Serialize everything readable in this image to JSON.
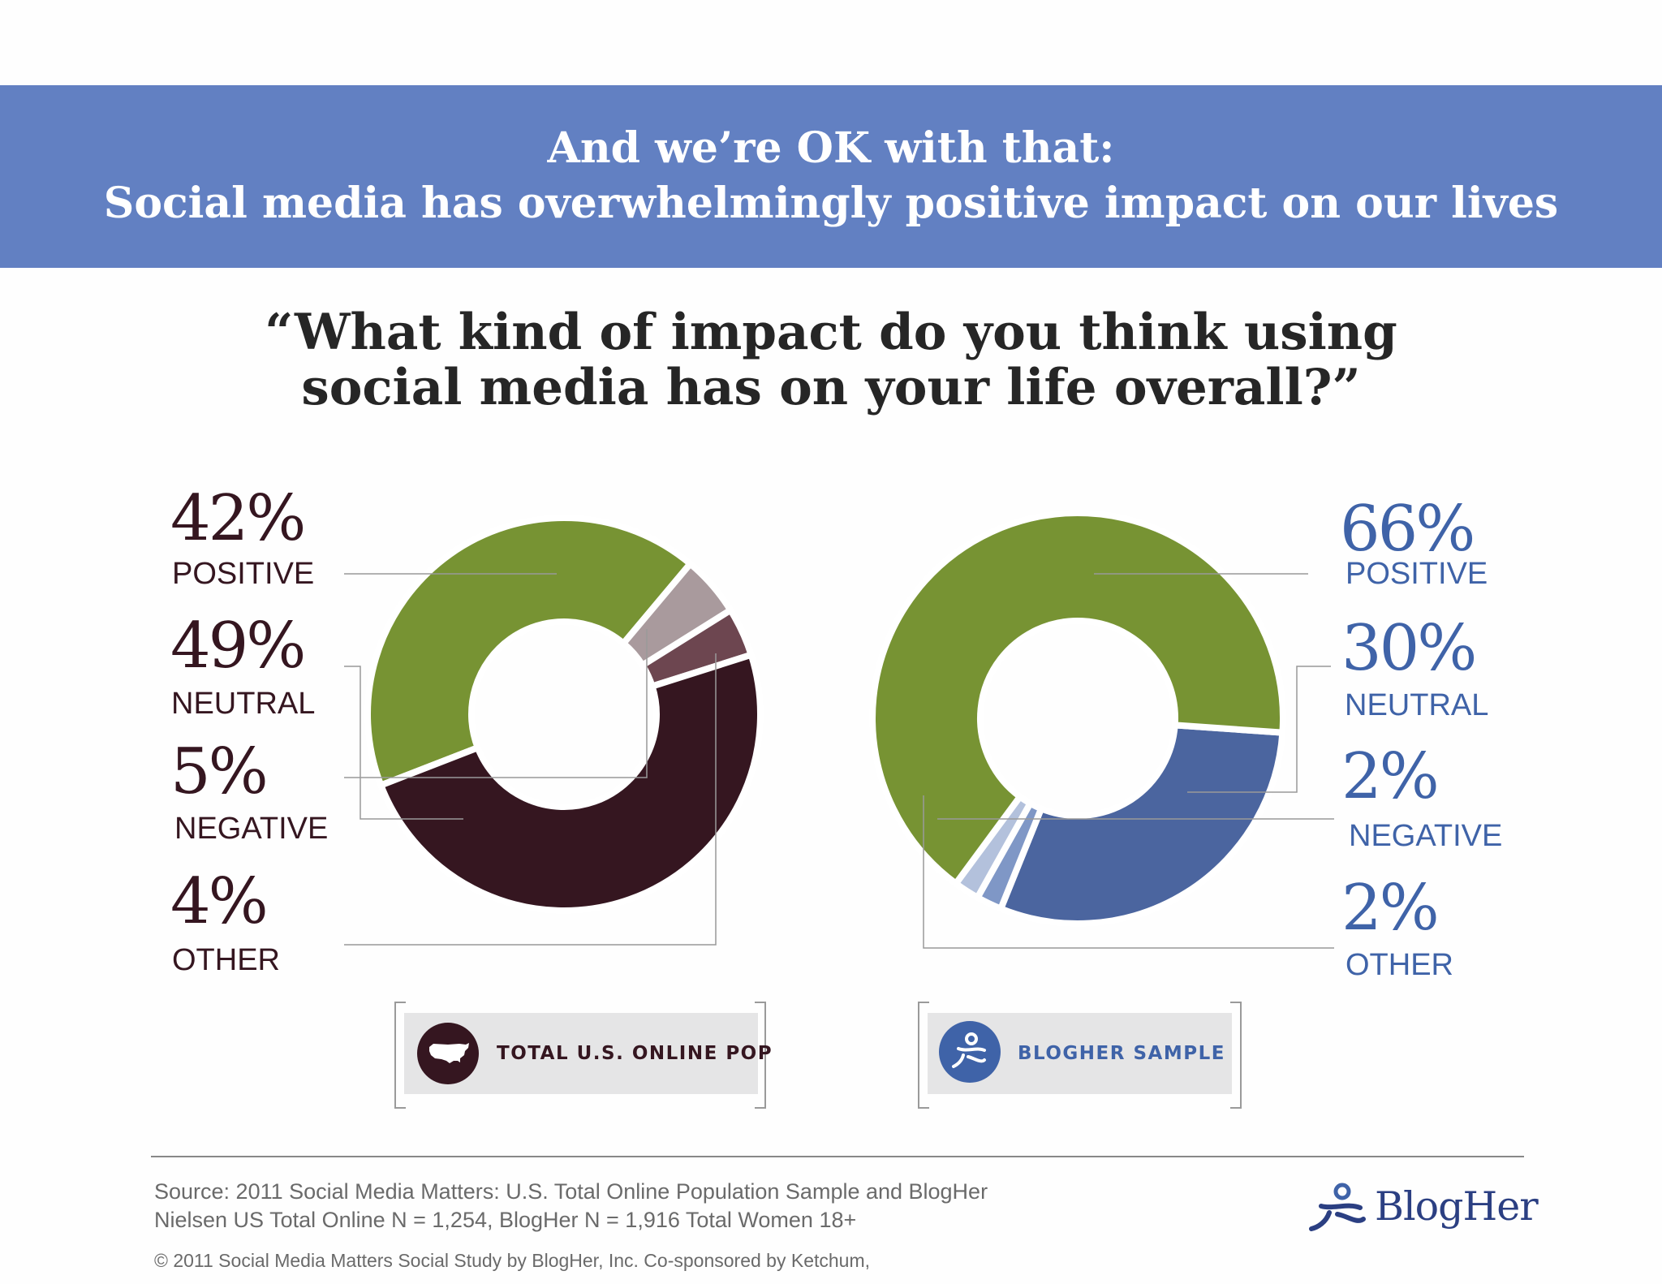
{
  "banner": {
    "line1": "And we’re OK with that:",
    "line2": "Social media has overwhelmingly positive impact on our lives"
  },
  "question": {
    "line1": "“What kind of impact do you think using",
    "line2": "social media has on your life overall?”"
  },
  "chart_data": [
    {
      "type": "pie",
      "legend": "TOTAL U.S. ONLINE POP",
      "labels": [
        "POSITIVE",
        "NEUTRAL",
        "NEGATIVE",
        "OTHER"
      ],
      "values": [
        42,
        49,
        5,
        4
      ],
      "value_labels": [
        "42%",
        "49%",
        "5%",
        "4%"
      ],
      "colors": [
        "#779333",
        "#351620",
        "#a99a9d",
        "#6d4650"
      ]
    },
    {
      "type": "pie",
      "legend": "BLOGHER SAMPLE",
      "labels": [
        "POSITIVE",
        "NEUTRAL",
        "NEGATIVE",
        "OTHER"
      ],
      "values": [
        66,
        30,
        2,
        2
      ],
      "value_labels": [
        "66%",
        "30%",
        "2%",
        "2%"
      ],
      "colors": [
        "#779333",
        "#4b659f",
        "#b3c1dc",
        "#7f97c6"
      ]
    }
  ],
  "colors": {
    "banner": "#6280c2",
    "left_text": "#351620",
    "right_text": "#3f63a8",
    "logo": "#2b3f82"
  },
  "icons": {
    "left_legend": "us-map-icon",
    "right_legend": "blogher-person-icon",
    "logo": "blogher-logo-icon"
  },
  "footer": {
    "source_line1": "Source: 2011 Social Media Matters: U.S. Total Online Population Sample and BlogHer",
    "source_line2": "Nielsen US Total Online N = 1,254, BlogHer N = 1,916 Total Women 18+",
    "copyright": "© 2011 Social Media Matters Social Study by BlogHer, Inc. Co-sponsored by Ketchum,",
    "logo_text": "BlogHer"
  }
}
